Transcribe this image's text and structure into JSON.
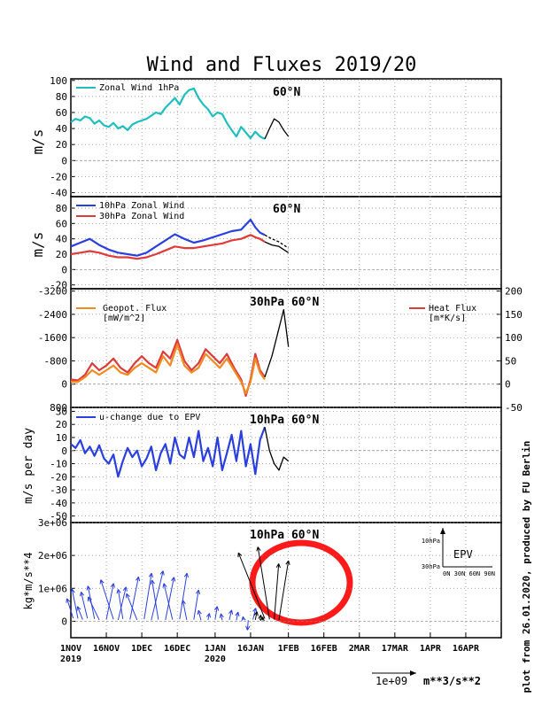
{
  "title": "Wind and Fluxes 2019/20",
  "footer_credit": "plot from 26.01.2020, produced by FU Berlin",
  "x_axis": {
    "ticks": [
      {
        "top": "1NOV",
        "bottom": "2019",
        "day": 0
      },
      {
        "top": "16NOV",
        "day": 15
      },
      {
        "top": "1DEC",
        "day": 30
      },
      {
        "top": "16DEC",
        "day": 45
      },
      {
        "top": "1JAN",
        "bottom": "2020",
        "day": 61
      },
      {
        "top": "16JAN",
        "day": 76
      },
      {
        "top": "1FEB",
        "day": 92
      },
      {
        "top": "16FEB",
        "day": 107
      },
      {
        "top": "2MAR",
        "day": 122
      },
      {
        "top": "17MAR",
        "day": 137
      },
      {
        "top": "1APR",
        "day": 152
      },
      {
        "top": "16APR",
        "day": 167
      }
    ],
    "range_days": [
      0,
      182
    ]
  },
  "scale": {
    "label": "1e+09",
    "unit": "m**3/s**2"
  },
  "colors": {
    "cyan": "#1fbfbf",
    "blue": "#2a3fe0",
    "red": "#e03a3a",
    "orange": "#f08a20",
    "forecast": "#000000",
    "highlight": "#ff1a1a"
  },
  "panels": {
    "p1": {
      "ylabel": "m/s",
      "tag": "60°N",
      "legend": "Zonal Wind 1hPa",
      "yticks": [
        "100",
        "80",
        "60",
        "40",
        "20",
        "0",
        "-20",
        "-40"
      ],
      "chart_data": {
        "type": "line",
        "ylim": [
          -45,
          102
        ],
        "series": [
          {
            "name": "Zonal Wind 1hPa",
            "color": "cyan",
            "x": [
              0,
              2,
              4,
              6,
              8,
              10,
              12,
              14,
              16,
              18,
              20,
              22,
              24,
              26,
              28,
              30,
              32,
              34,
              36,
              38,
              40,
              42,
              44,
              46,
              48,
              50,
              52,
              54,
              56,
              58,
              60,
              62,
              64,
              66,
              68,
              70,
              72,
              74,
              76,
              78,
              80,
              82
            ],
            "y": [
              48,
              52,
              50,
              55,
              53,
              46,
              50,
              44,
              42,
              47,
              40,
              43,
              38,
              45,
              48,
              50,
              52,
              56,
              60,
              58,
              66,
              72,
              78,
              70,
              82,
              88,
              90,
              78,
              70,
              64,
              55,
              60,
              58,
              47,
              38,
              30,
              42,
              35,
              28,
              36,
              30,
              27
            ]
          },
          {
            "name": "forecast",
            "color": "forecast",
            "x": [
              82,
              84,
              86,
              88,
              90,
              92
            ],
            "y": [
              27,
              40,
              52,
              48,
              38,
              30
            ]
          }
        ]
      }
    },
    "p2": {
      "ylabel": "m/s",
      "tag": "60°N",
      "legend_a": "10hPa Zonal Wind",
      "legend_b": "30hPa Zonal Wind",
      "yticks": [
        "80",
        "60",
        "40",
        "20",
        "0",
        "-20"
      ],
      "chart_data": {
        "type": "line",
        "ylim": [
          -25,
          95
        ],
        "series": [
          {
            "name": "10hPa Zonal Wind",
            "color": "blue",
            "x": [
              0,
              4,
              8,
              12,
              16,
              20,
              24,
              28,
              32,
              36,
              40,
              44,
              48,
              52,
              56,
              60,
              64,
              68,
              72,
              76,
              78,
              80,
              82
            ],
            "y": [
              30,
              35,
              40,
              32,
              26,
              22,
              20,
              18,
              22,
              30,
              38,
              46,
              40,
              35,
              38,
              42,
              46,
              50,
              52,
              65,
              55,
              48,
              45
            ]
          },
          {
            "name": "30hPa Zonal Wind",
            "color": "red",
            "x": [
              0,
              4,
              8,
              12,
              16,
              20,
              24,
              28,
              32,
              36,
              40,
              44,
              48,
              52,
              56,
              60,
              64,
              68,
              72,
              76,
              78,
              80,
              82
            ],
            "y": [
              20,
              22,
              24,
              22,
              18,
              16,
              16,
              14,
              16,
              20,
              25,
              30,
              28,
              28,
              30,
              32,
              34,
              38,
              40,
              45,
              42,
              40,
              36
            ]
          },
          {
            "name": "forecast 10hPa",
            "color": "forecast",
            "dashed": true,
            "x": [
              82,
              85,
              88,
              90,
              92
            ],
            "y": [
              45,
              40,
              36,
              32,
              28
            ]
          },
          {
            "name": "forecast 30hPa",
            "color": "forecast",
            "x": [
              82,
              85,
              88,
              90,
              92
            ],
            "y": [
              36,
              32,
              30,
              26,
              22
            ]
          }
        ]
      }
    },
    "p3": {
      "tag": "30hPa 60°N",
      "legend_left": "Geopot. Flux",
      "legend_left_unit": "[mW/m^2]",
      "legend_right": "Heat Flux",
      "legend_right_unit": "[m*K/s]",
      "yticks_left": [
        "-3200",
        "-2400",
        "-1600",
        "-800",
        "0",
        "800"
      ],
      "yticks_right": [
        "200",
        "150",
        "100",
        "50",
        "0",
        "-50"
      ],
      "chart_data": {
        "type": "line",
        "ylim_right": [
          -50,
          205
        ],
        "series": [
          {
            "name": "Heat Flux",
            "color": "red",
            "x": [
              0,
              3,
              6,
              9,
              12,
              15,
              18,
              21,
              24,
              27,
              30,
              33,
              36,
              39,
              42,
              45,
              48,
              51,
              54,
              57,
              60,
              63,
              66,
              69,
              72,
              74,
              76,
              78,
              80,
              82
            ],
            "y": [
              10,
              8,
              20,
              45,
              30,
              40,
              55,
              35,
              25,
              45,
              60,
              45,
              35,
              70,
              55,
              95,
              50,
              30,
              45,
              75,
              60,
              45,
              65,
              35,
              10,
              -25,
              10,
              65,
              30,
              15
            ]
          },
          {
            "name": "Geopot. Flux",
            "color": "orange",
            "x": [
              0,
              3,
              6,
              9,
              12,
              15,
              18,
              21,
              24,
              27,
              30,
              33,
              36,
              39,
              42,
              45,
              48,
              51,
              54,
              57,
              60,
              63,
              66,
              69,
              72,
              74,
              76,
              78,
              80,
              82
            ],
            "y": [
              5,
              5,
              15,
              30,
              20,
              30,
              40,
              25,
              20,
              35,
              45,
              35,
              25,
              60,
              40,
              85,
              40,
              25,
              35,
              65,
              50,
              35,
              55,
              30,
              5,
              -20,
              5,
              55,
              25,
              10
            ]
          },
          {
            "name": "forecast",
            "color": "forecast",
            "x": [
              82,
              85,
              88,
              90,
              92
            ],
            "y": [
              15,
              60,
              120,
              160,
              80
            ]
          }
        ]
      }
    },
    "p4": {
      "ylabel": "m/s per day",
      "tag": "10hPa 60°N",
      "legend": "u-change due to EPV",
      "yticks": [
        "30",
        "20",
        "10",
        "0",
        "-10",
        "-20",
        "-30",
        "-40",
        "-50"
      ],
      "chart_data": {
        "type": "line",
        "ylim": [
          -55,
          33
        ],
        "series": [
          {
            "name": "u-change due to EPV",
            "color": "blue",
            "x": [
              0,
              2,
              4,
              6,
              8,
              10,
              12,
              14,
              16,
              18,
              20,
              22,
              24,
              26,
              28,
              30,
              32,
              34,
              36,
              38,
              40,
              42,
              44,
              46,
              48,
              50,
              52,
              54,
              56,
              58,
              60,
              62,
              64,
              66,
              68,
              70,
              72,
              74,
              76,
              78,
              80,
              82
            ],
            "y": [
              5,
              2,
              8,
              -2,
              3,
              -4,
              4,
              -6,
              -10,
              -3,
              -20,
              -8,
              2,
              -5,
              0,
              -12,
              -6,
              3,
              -15,
              -2,
              5,
              -10,
              10,
              -3,
              -6,
              10,
              -5,
              15,
              -8,
              2,
              -12,
              10,
              -15,
              -2,
              12,
              -8,
              15,
              -12,
              5,
              -18,
              8,
              18
            ]
          },
          {
            "name": "forecast",
            "color": "forecast",
            "x": [
              82,
              84,
              86,
              88,
              90,
              92
            ],
            "y": [
              18,
              0,
              -10,
              -15,
              -5,
              -8
            ]
          }
        ]
      }
    },
    "p5": {
      "ylabel": "kg*m/s**4",
      "tag": "10hPa 60°N",
      "yticks": [
        "3e+06",
        "2e+06",
        "1e+06",
        "0"
      ],
      "inset_title": "EPV",
      "inset_y_top": "10hPa",
      "inset_y_bottom": "30hPa",
      "inset_x": "0N 30N 60N 90N",
      "chart_data": {
        "type": "vector",
        "ylim": [
          -500000.0,
          3000000.0
        ],
        "vectors_blue": [
          [
            1,
            90000.0,
            600000.0,
            -0.08
          ],
          [
            3,
            80000.0,
            900000.0,
            -0.05
          ],
          [
            5,
            50000.0,
            400000.0,
            -0.1
          ],
          [
            7,
            90000.0,
            800000.0,
            -0.06
          ],
          [
            10,
            70000.0,
            1000000.0,
            -0.05
          ],
          [
            12,
            40000.0,
            700000.0,
            -0.12
          ],
          [
            15,
            50000.0,
            1100000.0,
            0.05
          ],
          [
            18,
            60000.0,
            1200000.0,
            -0.08
          ],
          [
            20,
            40000.0,
            1000000.0,
            0.06
          ],
          [
            22,
            70000.0,
            900000.0,
            -0.04
          ],
          [
            25,
            50000.0,
            1300000.0,
            0.05
          ],
          [
            28,
            40000.0,
            800000.0,
            -0.1
          ],
          [
            31,
            60000.0,
            1400000.0,
            0.04
          ],
          [
            34,
            30000.0,
            1500000.0,
            0.06
          ],
          [
            37,
            50000.0,
            1200000.0,
            -0.04
          ],
          [
            40,
            40000.0,
            1300000.0,
            0.05
          ],
          [
            43,
            50000.0,
            1100000.0,
            -0.06
          ],
          [
            46,
            60000.0,
            1400000.0,
            0.04
          ],
          [
            49,
            40000.0,
            600000.0,
            -0.05
          ],
          [
            52,
            50000.0,
            900000.0,
            0.04
          ],
          [
            55,
            30000.0,
            300000.0,
            -0.06
          ],
          [
            58,
            40000.0,
            200000.0,
            0.05
          ],
          [
            61,
            50000.0,
            400000.0,
            0.04
          ],
          [
            64,
            30000.0,
            200000.0,
            -0.05
          ],
          [
            67,
            40000.0,
            300000.0,
            0.06
          ],
          [
            70,
            30000.0,
            250000.0,
            0.05
          ],
          [
            73,
            40000.0,
            100000.0,
            -0.04
          ],
          [
            75,
            30000.0,
            -300000.0,
            0.02
          ],
          [
            77,
            50000.0,
            350000.0,
            0.06
          ]
        ],
        "vectors_forecast": [
          [
            78,
            40000.0,
            250000.0,
            0.05
          ],
          [
            80,
            40000.0,
            150000.0,
            0.04
          ],
          [
            81,
            30000.0,
            100000.0,
            0.03
          ],
          [
            82,
            80000.0,
            2000000.0,
            -0.1
          ],
          [
            84,
            60000.0,
            2200000.0,
            -0.04
          ],
          [
            86,
            50000.0,
            1700000.0,
            0.02
          ],
          [
            88,
            40000.0,
            1800000.0,
            0.04
          ]
        ]
      }
    }
  }
}
